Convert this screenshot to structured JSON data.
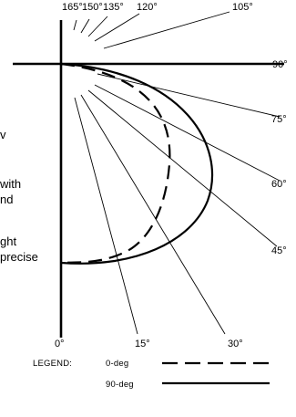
{
  "diagram": {
    "angle_labels": {
      "a0": "0°",
      "a15": "15°",
      "a30": "30°",
      "a45": "45°",
      "a60": "60°",
      "a75": "75°",
      "a90": "90°",
      "a105": "105°",
      "a120": "120°",
      "a135": "135°",
      "a150": "150°",
      "a165": "165°"
    },
    "side_text": [
      "v",
      "with",
      "nd",
      "ght",
      "precise"
    ],
    "legend": {
      "title": "LEGEND:",
      "items": [
        {
          "label": "0-deg",
          "style": "dashed"
        },
        {
          "label": "90-deg",
          "style": "solid"
        }
      ]
    },
    "colors": {
      "line": "#000000",
      "background": "#ffffff"
    }
  }
}
